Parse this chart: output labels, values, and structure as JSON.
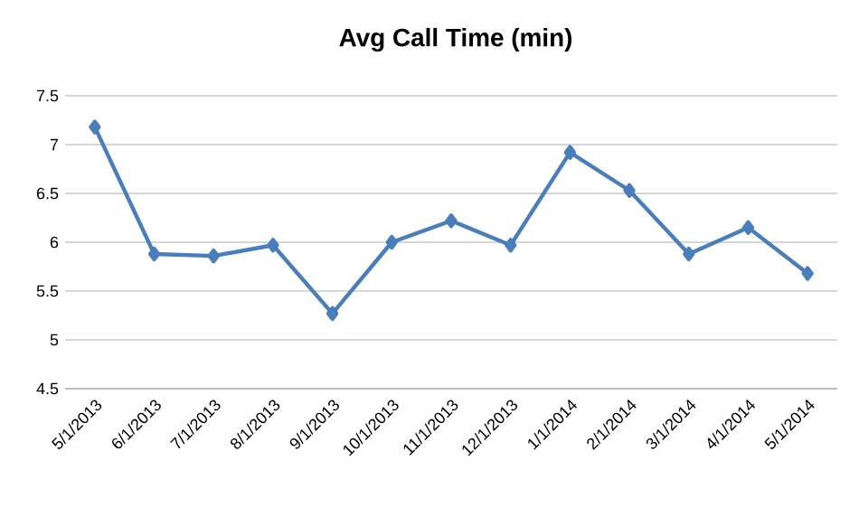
{
  "chart_data": {
    "type": "line",
    "title": "Avg Call Time (min)",
    "categories": [
      "5/1/2013",
      "6/1/2013",
      "7/1/2013",
      "8/1/2013",
      "9/1/2013",
      "10/1/2013",
      "11/1/2013",
      "12/1/2013",
      "1/1/2014",
      "2/1/2014",
      "3/1/2014",
      "4/1/2014",
      "5/1/2014"
    ],
    "values": [
      7.18,
      5.88,
      5.86,
      5.97,
      5.27,
      6.0,
      6.22,
      5.97,
      6.92,
      6.53,
      5.88,
      6.15,
      5.68
    ],
    "color": "#4a7ebb",
    "marker": "diamond",
    "grid": "y",
    "ylim": [
      4.5,
      7.5
    ],
    "yticks": [
      4.5,
      5,
      5.5,
      6,
      6.5,
      7,
      7.5
    ]
  }
}
